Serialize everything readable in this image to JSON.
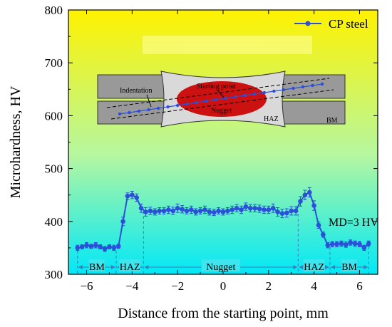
{
  "chart_data": {
    "type": "line",
    "xlabel": "Distance from the starting point, mm",
    "ylabel": "Microhardness, HV",
    "xlim": [
      -6.8,
      6.8
    ],
    "ylim": [
      300,
      800
    ],
    "xticks": [
      "−6",
      "−4",
      "−2",
      "0",
      "2",
      "4",
      "6"
    ],
    "xtick_values": [
      -6,
      -4,
      -2,
      0,
      2,
      4,
      6
    ],
    "yticks": [
      "300",
      "400",
      "500",
      "600",
      "700",
      "800"
    ],
    "ytick_values": [
      300,
      400,
      500,
      600,
      700,
      800
    ],
    "background_gradient": [
      "#fff200",
      "#b5f7a0",
      "#00e8f8"
    ],
    "legend_position": "top-right",
    "series": [
      {
        "name": "CP steel",
        "color": "#2b4fd9",
        "marker": "circle",
        "x": [
          -6.4,
          -6.2,
          -6.0,
          -5.8,
          -5.6,
          -5.4,
          -5.2,
          -5.0,
          -4.8,
          -4.6,
          -4.4,
          -4.2,
          -4.0,
          -3.8,
          -3.6,
          -3.4,
          -3.2,
          -3.0,
          -2.8,
          -2.6,
          -2.4,
          -2.2,
          -2.0,
          -1.8,
          -1.6,
          -1.4,
          -1.2,
          -1.0,
          -0.8,
          -0.6,
          -0.4,
          -0.2,
          0.0,
          0.2,
          0.4,
          0.6,
          0.8,
          1.0,
          1.2,
          1.4,
          1.6,
          1.8,
          2.0,
          2.2,
          2.4,
          2.6,
          2.8,
          3.0,
          3.2,
          3.4,
          3.6,
          3.8,
          4.0,
          4.2,
          4.4,
          4.6,
          4.8,
          5.0,
          5.2,
          5.4,
          5.6,
          5.8,
          6.0,
          6.2,
          6.4
        ],
        "y": [
          350,
          352,
          355,
          353,
          355,
          352,
          348,
          352,
          350,
          353,
          400,
          448,
          450,
          445,
          425,
          418,
          420,
          418,
          420,
          420,
          422,
          420,
          425,
          423,
          420,
          422,
          418,
          420,
          422,
          418,
          417,
          420,
          418,
          420,
          422,
          425,
          422,
          428,
          425,
          425,
          424,
          422,
          422,
          425,
          418,
          415,
          416,
          420,
          420,
          438,
          450,
          455,
          430,
          393,
          375,
          355,
          357,
          357,
          358,
          356,
          360,
          358,
          357,
          350,
          358
        ],
        "err": [
          5,
          4,
          5,
          4,
          5,
          4,
          5,
          4,
          5,
          4,
          8,
          6,
          7,
          7,
          8,
          8,
          7,
          6,
          6,
          6,
          7,
          7,
          8,
          7,
          6,
          7,
          6,
          6,
          7,
          6,
          6,
          6,
          6,
          6,
          7,
          7,
          7,
          7,
          7,
          7,
          7,
          7,
          7,
          8,
          8,
          8,
          8,
          8,
          8,
          9,
          9,
          9,
          9,
          6,
          5,
          5,
          5,
          5,
          5,
          5,
          5,
          5,
          5,
          5,
          5
        ]
      }
    ],
    "regions": [
      {
        "label": "BM",
        "from": -6.4,
        "to": -4.7
      },
      {
        "label": "HAZ",
        "from": -4.7,
        "to": -3.5
      },
      {
        "label": "Nugget",
        "from": -3.5,
        "to": 3.3
      },
      {
        "label": "HAZ",
        "from": 3.3,
        "to": 4.7
      },
      {
        "label": "BM",
        "from": 4.7,
        "to": 6.4
      }
    ],
    "annotations": [
      {
        "text": "MD=3 HV"
      }
    ],
    "inset": {
      "labels": {
        "starting_point": "Starting point",
        "indentation": "Indentation",
        "nugget": "Nugget",
        "haz": "HAZ",
        "bm": "BM"
      },
      "colors": {
        "plate": "#999999",
        "haz": "#d9d9d9",
        "nugget": "#cc1111",
        "indent": "#2b4fd9"
      }
    }
  }
}
